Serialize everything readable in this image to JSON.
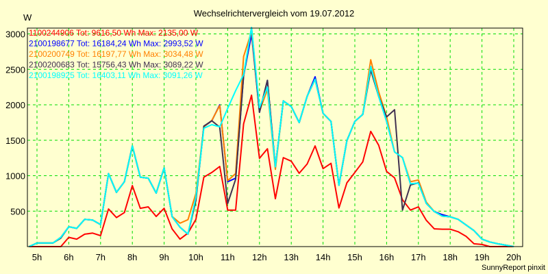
{
  "chart_data": {
    "type": "line",
    "title": "Wechselrichtervergleich vom 19.07.2012",
    "ylabel": "W",
    "xlabel": "",
    "credit": "SunnyReport pinxit",
    "ylim": [
      0,
      3090
    ],
    "xlim": [
      4.75,
      20.2
    ],
    "grid": true,
    "legend_position": "top-left",
    "yticks": [
      500,
      1000,
      1500,
      2000,
      2500,
      3000
    ],
    "xticks": [
      5,
      6,
      7,
      8,
      9,
      10,
      11,
      12,
      13,
      14,
      15,
      16,
      17,
      18,
      19,
      20
    ],
    "xtick_labels": [
      "5h",
      "6h",
      "7h",
      "8h",
      "9h",
      "10h",
      "11h",
      "12h",
      "13h",
      "14h",
      "15h",
      "16h",
      "17h",
      "18h",
      "19h",
      "20h"
    ],
    "x_start": 4.75,
    "x_step": 0.25,
    "series": [
      {
        "name": "1100244906",
        "legend": "1100244906 Tot: 9616,50 Wh Max: 2135,00 W",
        "color": "#ff0000",
        "values": [
          0,
          0,
          0,
          0,
          0,
          130,
          105,
          175,
          190,
          155,
          530,
          410,
          480,
          860,
          540,
          560,
          425,
          540,
          250,
          105,
          190,
          385,
          980,
          1045,
          1130,
          515,
          515,
          1730,
          2135,
          1245,
          1380,
          675,
          1255,
          1205,
          1035,
          1165,
          1420,
          1100,
          1175,
          545,
          900,
          1045,
          1195,
          1625,
          1430,
          1060,
          970,
          660,
          515,
          560,
          370,
          250,
          245,
          245,
          210,
          145,
          40,
          30,
          0,
          0,
          0,
          0
        ]
      },
      {
        "name": "2100198677",
        "legend": "2100198677 Tot: 16184,24 Wh Max: 2993,52 W",
        "color": "#0000ff",
        "values": [
          0,
          50,
          50,
          50,
          130,
          280,
          257,
          385,
          375,
          310,
          1030,
          765,
          915,
          1420,
          980,
          965,
          755,
          1110,
          425,
          273,
          177,
          680,
          1690,
          1775,
          2000,
          915,
          965,
          2410,
          2994,
          1895,
          2345,
          1125,
          2055,
          1975,
          1750,
          2120,
          2395,
          1880,
          1765,
          865,
          1495,
          1765,
          1865,
          2540,
          2120,
          1765,
          1335,
          1255,
          885,
          895,
          610,
          495,
          450,
          420,
          385,
          305,
          225,
          105,
          65,
          40,
          20,
          0
        ]
      },
      {
        "name": "2100200749",
        "legend": "2100200749 Tot: 16197,77 Wh Max: 3034,48 W",
        "color": "#ff8000",
        "values": [
          0,
          50,
          50,
          50,
          130,
          280,
          257,
          385,
          375,
          310,
          1030,
          765,
          915,
          1420,
          980,
          965,
          755,
          1110,
          425,
          330,
          380,
          750,
          1690,
          1780,
          1990,
          930,
          1030,
          2680,
          3034,
          1910,
          2215,
          1090,
          2055,
          1975,
          1750,
          2120,
          2360,
          1880,
          1765,
          865,
          1495,
          1765,
          1865,
          2635,
          2185,
          1830,
          1335,
          1255,
          915,
          940,
          625,
          495,
          430,
          420,
          385,
          305,
          225,
          105,
          65,
          40,
          20,
          0
        ]
      },
      {
        "name": "2100200683",
        "legend": "2100200683 Tot: 15756,43 Wh Max: 3089,22 W",
        "color": "#403050",
        "values": [
          0,
          50,
          50,
          50,
          120,
          280,
          257,
          385,
          375,
          310,
          1030,
          765,
          915,
          1420,
          980,
          965,
          755,
          1110,
          425,
          273,
          177,
          650,
          1700,
          1775,
          1685,
          610,
          950,
          2410,
          3089,
          1895,
          2345,
          1125,
          2055,
          1975,
          1750,
          2120,
          2360,
          1880,
          1765,
          865,
          1495,
          1765,
          1865,
          2490,
          2120,
          1830,
          1930,
          515,
          870,
          900,
          610,
          495,
          430,
          420,
          385,
          305,
          225,
          105,
          65,
          40,
          20,
          0
        ]
      },
      {
        "name": "2100198925",
        "legend": "2100198925 Tot: 16403,11 Wh Max: 3091,26 W",
        "color": "#00ffff",
        "values": [
          0,
          50,
          50,
          50,
          130,
          280,
          257,
          385,
          375,
          310,
          1030,
          765,
          915,
          1420,
          980,
          965,
          755,
          1110,
          425,
          273,
          177,
          700,
          1670,
          1720,
          1690,
          1950,
          2200,
          2425,
          3091,
          1960,
          2250,
          1125,
          2055,
          1975,
          1750,
          2120,
          2360,
          1880,
          1765,
          865,
          1495,
          1765,
          1865,
          2540,
          2120,
          1765,
          1335,
          1255,
          885,
          895,
          610,
          495,
          430,
          420,
          385,
          305,
          225,
          105,
          65,
          40,
          20,
          0
        ]
      }
    ]
  },
  "colors": {
    "background": "#ffffd0",
    "grid": "#00dd00",
    "axis": "#000000"
  }
}
